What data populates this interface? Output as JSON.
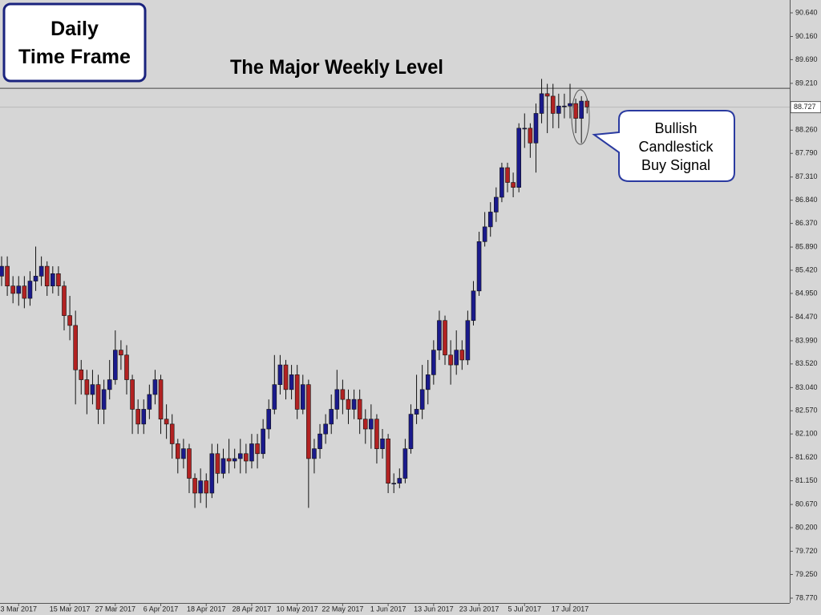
{
  "chart_data": {
    "type": "candlestick",
    "annotations": {
      "timeframe": [
        "Daily",
        "Time Frame"
      ],
      "level_title": "The Major Weekly Level",
      "signal": [
        "Bullish",
        "Candlestick",
        "Buy Signal"
      ]
    },
    "level": 89.11,
    "price_label": {
      "value": 88.727,
      "label": "88.727"
    },
    "bull_color": "#1a1a8c",
    "bear_color": "#b22222",
    "ylim": [
      78.672,
      90.9
    ],
    "yticks": [
      {
        "value": 90.64,
        "label": "90.640"
      },
      {
        "value": 90.16,
        "label": "90.160"
      },
      {
        "value": 89.69,
        "label": "89.690"
      },
      {
        "value": 89.21,
        "label": "89.210"
      },
      {
        "value": 88.26,
        "label": "88.260"
      },
      {
        "value": 87.79,
        "label": "87.790"
      },
      {
        "value": 87.31,
        "label": "87.310"
      },
      {
        "value": 86.84,
        "label": "86.840"
      },
      {
        "value": 86.37,
        "label": "86.370"
      },
      {
        "value": 85.89,
        "label": "85.890"
      },
      {
        "value": 85.42,
        "label": "85.420"
      },
      {
        "value": 84.95,
        "label": "84.950"
      },
      {
        "value": 84.47,
        "label": "84.470"
      },
      {
        "value": 83.99,
        "label": "83.990"
      },
      {
        "value": 83.52,
        "label": "83.520"
      },
      {
        "value": 83.04,
        "label": "83.040"
      },
      {
        "value": 82.57,
        "label": "82.570"
      },
      {
        "value": 82.1,
        "label": "82.100"
      },
      {
        "value": 81.62,
        "label": "81.620"
      },
      {
        "value": 81.15,
        "label": "81.150"
      },
      {
        "value": 80.67,
        "label": "80.670"
      },
      {
        "value": 80.2,
        "label": "80.200"
      },
      {
        "value": 79.72,
        "label": "79.720"
      },
      {
        "value": 79.25,
        "label": "79.250"
      },
      {
        "value": 78.77,
        "label": "78.770"
      }
    ],
    "categories": [
      null,
      null,
      null,
      "3 Mar 2017",
      null,
      null,
      null,
      null,
      null,
      null,
      null,
      null,
      "15 Mar 2017",
      null,
      null,
      null,
      null,
      null,
      null,
      null,
      "27 Mar 2017",
      null,
      null,
      null,
      null,
      null,
      null,
      null,
      "6 Apr 2017",
      null,
      null,
      null,
      null,
      null,
      null,
      null,
      "18 Apr 2017",
      null,
      null,
      null,
      null,
      null,
      null,
      null,
      "28 Apr 2017",
      null,
      null,
      null,
      null,
      null,
      null,
      null,
      "10 May 2017",
      null,
      null,
      null,
      null,
      null,
      null,
      null,
      "22 May 2017",
      null,
      null,
      null,
      null,
      null,
      null,
      null,
      "1 Jun 2017",
      null,
      null,
      null,
      null,
      null,
      null,
      null,
      "13 Jun 2017",
      null,
      null,
      null,
      null,
      null,
      null,
      null,
      "23 Jun 2017",
      null,
      null,
      null,
      null,
      null,
      null,
      null,
      "5 Jul 2017",
      null,
      null,
      null,
      null,
      null,
      null,
      null,
      "17 Jul 2017",
      null,
      null,
      null
    ],
    "open": [
      85.3,
      85.5,
      85.1,
      84.95,
      85.1,
      84.85,
      85.2,
      85.3,
      85.5,
      85.1,
      85.35,
      85.1,
      84.5,
      84.3,
      83.4,
      83.2,
      82.9,
      83.1,
      82.6,
      83.0,
      83.2,
      83.8,
      83.7,
      83.2,
      82.6,
      82.3,
      82.6,
      82.9,
      83.2,
      82.4,
      82.3,
      81.9,
      81.6,
      81.8,
      81.2,
      80.9,
      81.15,
      80.9,
      81.7,
      81.3,
      81.6,
      81.55,
      81.6,
      81.7,
      81.55,
      81.9,
      81.7,
      82.2,
      82.6,
      83.1,
      83.5,
      83.0,
      83.3,
      82.6,
      83.1,
      81.6,
      81.8,
      82.1,
      82.3,
      82.6,
      83.0,
      82.8,
      82.6,
      82.8,
      82.4,
      82.2,
      82.4,
      81.8,
      82.0,
      81.1,
      81.1,
      81.2,
      81.8,
      82.5,
      82.6,
      83.0,
      83.3,
      83.8,
      84.4,
      83.7,
      83.5,
      83.8,
      83.6,
      84.4,
      85.0,
      86.0,
      86.3,
      86.6,
      86.9,
      87.5,
      87.2,
      87.1,
      88.3,
      88.3,
      88.0,
      88.6,
      89.0,
      88.95,
      88.6,
      88.75,
      88.75,
      88.8,
      88.5,
      88.85
    ],
    "high": [
      85.7,
      85.7,
      85.3,
      85.3,
      85.3,
      85.4,
      85.9,
      85.7,
      85.6,
      85.5,
      85.5,
      85.2,
      84.9,
      84.6,
      83.6,
      83.4,
      83.4,
      83.3,
      83.2,
      83.6,
      84.2,
      84.0,
      83.9,
      83.3,
      82.8,
      82.8,
      83.1,
      83.4,
      83.3,
      82.7,
      82.5,
      82.0,
      82.0,
      81.9,
      81.3,
      81.4,
      81.3,
      81.9,
      81.9,
      81.8,
      82.0,
      81.8,
      82.0,
      81.9,
      82.1,
      82.1,
      82.4,
      82.8,
      83.7,
      83.7,
      83.6,
      83.5,
      83.5,
      83.3,
      83.2,
      82.0,
      82.3,
      82.5,
      82.9,
      83.4,
      83.2,
      83.0,
      83.0,
      83.0,
      82.6,
      82.7,
      82.5,
      82.2,
      82.1,
      81.3,
      81.4,
      82.0,
      82.7,
      83.3,
      83.5,
      83.6,
      84.0,
      84.6,
      84.5,
      84.0,
      84.2,
      84.0,
      84.6,
      85.2,
      86.2,
      86.6,
      86.8,
      87.1,
      87.6,
      87.6,
      87.4,
      88.4,
      88.6,
      88.4,
      88.8,
      89.3,
      89.2,
      89.2,
      89.0,
      89.0,
      89.2,
      88.9,
      88.95,
      88.9
    ],
    "low": [
      85.1,
      84.9,
      84.75,
      84.7,
      84.65,
      84.7,
      85.0,
      85.1,
      84.9,
      84.95,
      84.9,
      84.2,
      84.0,
      82.7,
      82.9,
      82.5,
      82.7,
      82.3,
      82.3,
      82.8,
      83.1,
      83.4,
      82.9,
      82.1,
      82.1,
      82.1,
      82.4,
      82.7,
      82.1,
      82.0,
      81.6,
      81.3,
      81.4,
      80.9,
      80.6,
      80.7,
      80.6,
      80.8,
      81.1,
      81.2,
      81.3,
      81.4,
      81.3,
      81.3,
      81.4,
      81.4,
      81.6,
      82.0,
      82.5,
      82.9,
      82.8,
      82.8,
      82.4,
      82.5,
      80.6,
      81.3,
      81.6,
      81.9,
      82.1,
      82.4,
      82.5,
      82.3,
      82.4,
      82.1,
      81.9,
      81.8,
      81.5,
      81.6,
      80.9,
      80.9,
      81.0,
      81.1,
      81.7,
      82.3,
      82.4,
      82.7,
      83.1,
      83.6,
      83.5,
      83.1,
      83.3,
      83.4,
      83.5,
      84.3,
      84.9,
      85.9,
      86.1,
      86.4,
      86.8,
      87.0,
      86.9,
      87.0,
      87.9,
      87.7,
      87.4,
      88.4,
      88.2,
      88.3,
      88.3,
      88.5,
      88.5,
      88.2,
      88.0,
      88.6
    ],
    "close": [
      85.5,
      85.1,
      84.95,
      85.1,
      84.85,
      85.2,
      85.3,
      85.5,
      85.1,
      85.35,
      85.1,
      84.5,
      84.3,
      83.4,
      83.2,
      82.9,
      83.1,
      82.6,
      83.0,
      83.2,
      83.8,
      83.7,
      83.2,
      82.6,
      82.3,
      82.6,
      82.9,
      83.2,
      82.4,
      82.3,
      81.9,
      81.6,
      81.8,
      81.2,
      80.9,
      81.15,
      80.9,
      81.7,
      81.3,
      81.6,
      81.55,
      81.6,
      81.7,
      81.55,
      81.9,
      81.7,
      82.2,
      82.6,
      83.1,
      83.5,
      83.0,
      83.3,
      82.6,
      83.1,
      81.6,
      81.8,
      82.1,
      82.3,
      82.6,
      83.0,
      82.8,
      82.6,
      82.8,
      82.4,
      82.2,
      82.4,
      81.8,
      82.0,
      81.1,
      81.1,
      81.2,
      81.8,
      82.5,
      82.6,
      83.0,
      83.3,
      83.8,
      84.4,
      83.7,
      83.5,
      83.8,
      83.6,
      84.4,
      85.0,
      86.0,
      86.3,
      86.6,
      86.9,
      87.5,
      87.2,
      87.1,
      88.3,
      88.3,
      88.0,
      88.6,
      89.0,
      88.95,
      88.6,
      88.75,
      88.75,
      88.8,
      88.5,
      88.85,
      88.73
    ]
  }
}
